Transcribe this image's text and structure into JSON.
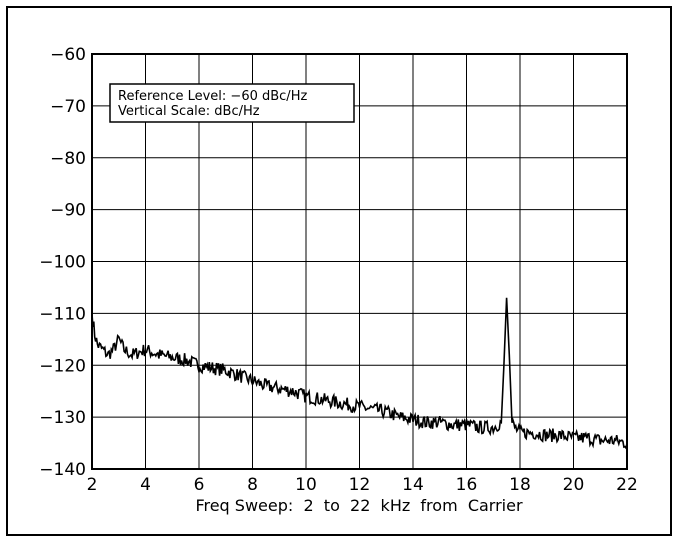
{
  "chart_data": {
    "type": "line",
    "xlabel": "Freq Sweep:  2  to  22  kHz  from  Carrier",
    "ylabel": "",
    "title": "",
    "xlim": [
      2,
      22
    ],
    "ylim": [
      -140,
      -60
    ],
    "x_ticks": [
      "2",
      "4",
      "6",
      "8",
      "10",
      "12",
      "14",
      "16",
      "18",
      "20",
      "22"
    ],
    "y_ticks": [
      "-60",
      "-70",
      "-80",
      "-90",
      "-100",
      "-110",
      "-120",
      "-130",
      "-140"
    ],
    "grid": true,
    "annotation": {
      "line1": "Reference Level: −60 dBc/Hz",
      "line2": "Vertical Scale: dBc/Hz"
    },
    "series": [
      {
        "x": [
          2.0,
          2.1,
          2.2,
          2.4,
          2.6,
          2.8,
          3.0,
          3.2,
          3.5,
          4.0,
          4.5,
          5.0,
          5.5,
          6.0,
          6.5,
          7.0,
          7.5,
          8.0,
          8.5,
          9.0,
          9.5,
          10.0,
          10.5,
          11.0,
          11.5,
          12.0,
          12.5,
          13.0,
          13.5,
          14.0,
          14.5,
          15.0,
          15.5,
          16.0,
          16.5,
          17.0,
          17.3,
          17.4,
          17.5,
          17.6,
          17.7,
          17.8,
          18.0,
          18.5,
          19.0,
          19.5,
          20.0,
          20.5,
          21.0,
          21.5,
          22.0
        ],
        "y": [
          -110,
          -114,
          -116,
          -117,
          -118,
          -117,
          -115,
          -117,
          -118,
          -117,
          -118,
          -118.5,
          -119,
          -120,
          -120.5,
          -121,
          -122,
          -123,
          -124,
          -124.5,
          -125,
          -126,
          -126.5,
          -127,
          -127.5,
          -128,
          -128.5,
          -129,
          -130,
          -130.5,
          -131,
          -131,
          -131.5,
          -131.5,
          -132,
          -132,
          -131,
          -120,
          -107,
          -118,
          -131,
          -132,
          -133,
          -133,
          -133.5,
          -133.5,
          -134,
          -134,
          -134.5,
          -134.5,
          -135
        ]
      }
    ]
  }
}
